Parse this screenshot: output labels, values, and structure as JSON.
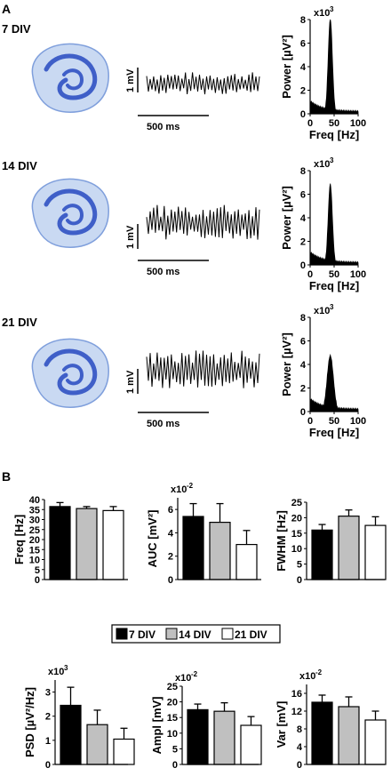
{
  "panel_a": {
    "label": "A",
    "colors": {
      "ink": "#000000",
      "tissue_light": "#c9d9f2",
      "tissue_mid": "#7f9fdc",
      "tissue_dark": "#3f5fc8"
    },
    "rows": [
      {
        "div_label": "7 DIV",
        "scale_v": "1 mV",
        "scale_t": "500 ms",
        "spectrum": {
          "ylabel": "Power [µV²]",
          "exponent": "x10",
          "exp_power": "3",
          "xlabel": "Freq [Hz]",
          "yticks": [
            "0",
            "2",
            "4",
            "6",
            "8"
          ],
          "xticks": [
            "0",
            "50",
            "100"
          ],
          "peak": 8,
          "xlim": [
            0,
            100
          ],
          "ylim": [
            0,
            8
          ]
        }
      },
      {
        "div_label": "14 DIV",
        "scale_v": "1 mV",
        "scale_t": "500 ms",
        "spectrum": {
          "ylabel": "Power [µV²]",
          "exponent": "x10",
          "exp_power": "3",
          "xlabel": "Freq [Hz]",
          "yticks": [
            "0",
            "2",
            "4",
            "6",
            "8"
          ],
          "xticks": [
            "0",
            "50",
            "100"
          ],
          "peak": 6.8,
          "xlim": [
            0,
            100
          ],
          "ylim": [
            0,
            8
          ]
        }
      },
      {
        "div_label": "21 DIV",
        "scale_v": "1 mV",
        "scale_t": "500 ms",
        "spectrum": {
          "ylabel": "Power [µV²]",
          "exponent": "x10",
          "exp_power": "3",
          "xlabel": "Freq [Hz]",
          "yticks": [
            "0",
            "2",
            "4",
            "6",
            "8"
          ],
          "xticks": [
            "0",
            "50",
            "100"
          ],
          "peak": 4.7,
          "xlim": [
            0,
            100
          ],
          "ylim": [
            0,
            8
          ]
        }
      }
    ]
  },
  "panel_b": {
    "label": "B",
    "legend": [
      "7 DIV",
      "14 DIV",
      "21 DIV"
    ],
    "colors": {
      "7 DIV": "#000000",
      "14 DIV": "#c0c0c0",
      "21 DIV": "#ffffff"
    }
  },
  "chart_data": [
    {
      "type": "bar",
      "ylabel": "Freq [Hz]",
      "exponent": "",
      "exp_power": "",
      "categories": [
        "7 DIV",
        "14 DIV",
        "21 DIV"
      ],
      "values": [
        36.5,
        35.5,
        34.5
      ],
      "errors": [
        2.0,
        1.0,
        2.0
      ],
      "ylim": [
        0,
        40
      ],
      "yticks": [
        "0",
        "5",
        "10",
        "15",
        "20",
        "25",
        "30",
        "35",
        "40"
      ]
    },
    {
      "type": "bar",
      "ylabel": "AUC [mV²]",
      "exponent": "x10",
      "exp_power": "-2",
      "categories": [
        "7 DIV",
        "14 DIV",
        "21 DIV"
      ],
      "values": [
        5.4,
        4.9,
        3.0
      ],
      "errors": [
        1.1,
        1.6,
        1.2
      ],
      "ylim": [
        0,
        7
      ],
      "yticks": [
        "0",
        "2",
        "4",
        "6"
      ]
    },
    {
      "type": "bar",
      "ylabel": "FWHM [Hz]",
      "exponent": "",
      "exp_power": "",
      "categories": [
        "7 DIV",
        "14 DIV",
        "21 DIV"
      ],
      "values": [
        16.0,
        20.5,
        17.5
      ],
      "errors": [
        1.8,
        2.0,
        2.8
      ],
      "ylim": [
        0,
        25
      ],
      "yticks": [
        "0",
        "5",
        "10",
        "15",
        "20",
        "25"
      ]
    },
    {
      "type": "bar",
      "ylabel": "PSD [µV²/Hz]",
      "exponent": "x10",
      "exp_power": "3",
      "categories": [
        "7 DIV",
        "14 DIV",
        "21 DIV"
      ],
      "values": [
        2.45,
        1.65,
        1.05
      ],
      "errors": [
        0.75,
        0.6,
        0.45
      ],
      "ylim": [
        0,
        3.5
      ],
      "yticks": [
        "0",
        "1",
        "2",
        "3"
      ]
    },
    {
      "type": "bar",
      "ylabel": "Ampl [mV]",
      "exponent": "x10",
      "exp_power": "-2",
      "categories": [
        "7 DIV",
        "14 DIV",
        "21 DIV"
      ],
      "values": [
        17.5,
        17.0,
        12.5
      ],
      "errors": [
        1.8,
        2.7,
        2.8
      ],
      "ylim": [
        0,
        25
      ],
      "yticks": [
        "0",
        "5",
        "10",
        "15",
        "20",
        "25"
      ]
    },
    {
      "type": "bar",
      "ylabel": "Var [mV]",
      "exponent": "x10",
      "exp_power": "-2",
      "categories": [
        "7 DIV",
        "14 DIV",
        "21 DIV"
      ],
      "values": [
        14.0,
        13.0,
        10.0
      ],
      "errors": [
        1.6,
        2.2,
        2.0
      ],
      "ylim": [
        0,
        18
      ],
      "yticks": [
        "0",
        "4",
        "8",
        "12",
        "16"
      ]
    }
  ]
}
